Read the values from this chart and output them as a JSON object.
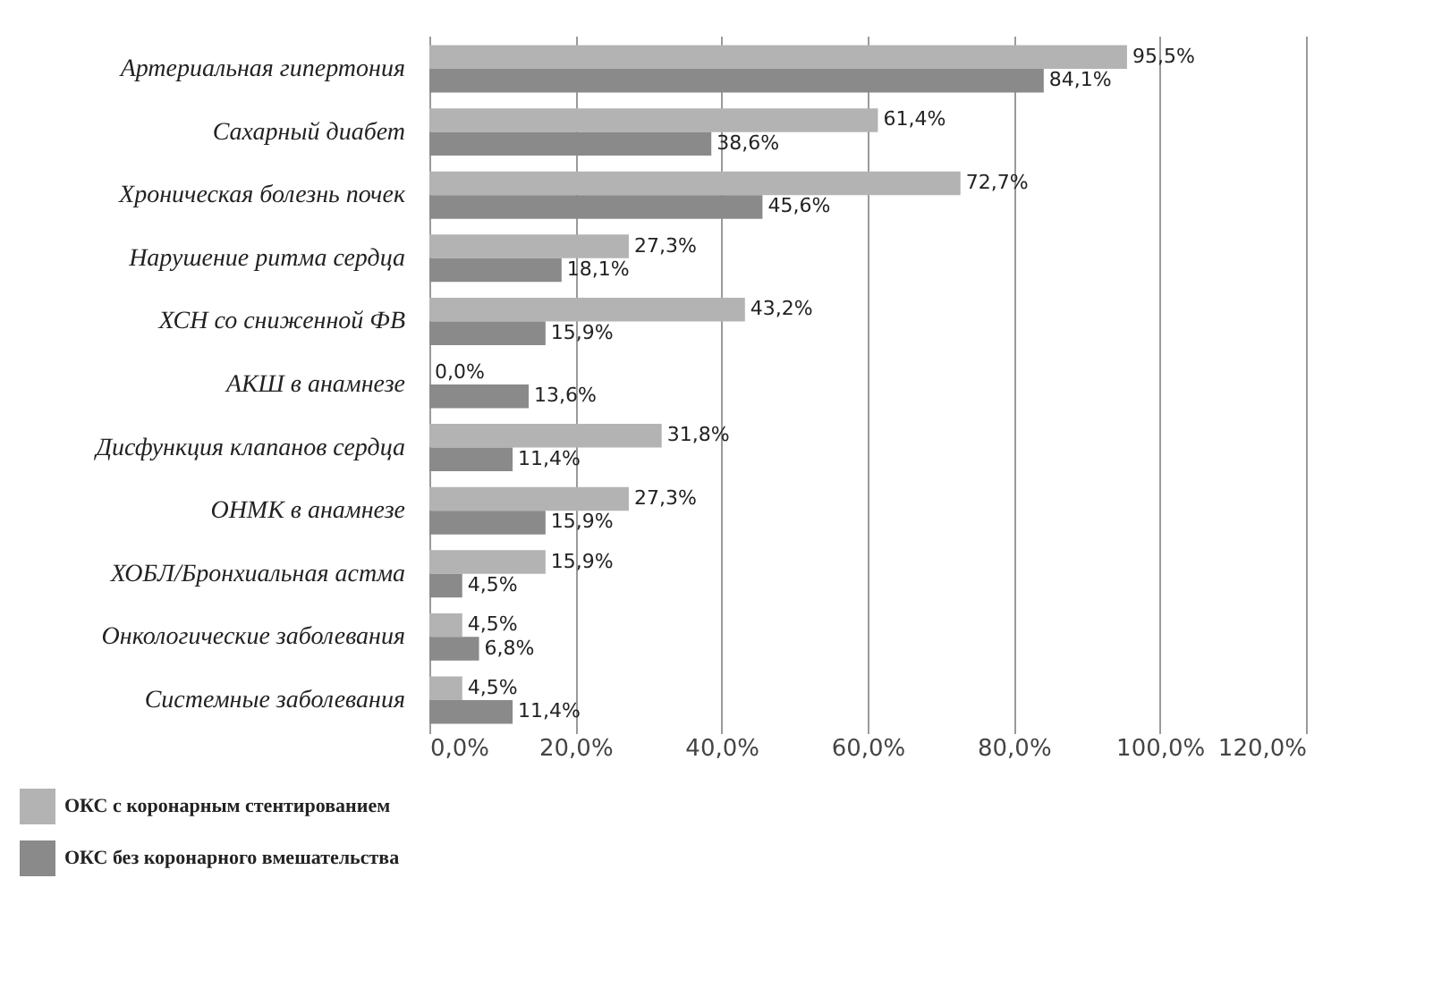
{
  "chart_data": {
    "type": "bar",
    "orientation": "horizontal",
    "categories": [
      "Артериальная гипертония",
      "Сахарный диабет",
      "Хроническая болезнь почек",
      "Нарушение ритма сердца",
      "ХСН со сниженной ФВ",
      "АКШ в анамнезе",
      "Дисфункция клапанов сердца",
      "ОНМК в анамнезе",
      "ХОБЛ/Бронхиальная астма",
      "Онкологические заболевания",
      "Системные заболевания"
    ],
    "series": [
      {
        "name": "ОКС с коронарным стентированием",
        "color": "#b3b3b3",
        "values": [
          95.5,
          61.4,
          72.7,
          27.3,
          43.2,
          0.0,
          31.8,
          27.3,
          15.9,
          4.5,
          4.5
        ],
        "value_labels": [
          "95,5%",
          "61,4%",
          "72,7%",
          "27,3%",
          "43,2%",
          "0,0%",
          "31,8%",
          "27,3%",
          "15,9%",
          "4,5%",
          "4,5%"
        ]
      },
      {
        "name": "ОКС без коронарного вмешательства",
        "color": "#8a8a8a",
        "values": [
          84.1,
          38.6,
          45.6,
          18.1,
          15.9,
          13.6,
          11.4,
          15.9,
          4.5,
          6.8,
          11.4
        ],
        "value_labels": [
          "84,1%",
          "38,6%",
          "45,6%",
          "18,1%",
          "15,9%",
          "13,6%",
          "11,4%",
          "15,9%",
          "4,5%",
          "6,8%",
          "11,4%"
        ]
      }
    ],
    "xlim": [
      0,
      120
    ],
    "xticks": [
      {
        "value": 0,
        "label": "0,0%"
      },
      {
        "value": 20,
        "label": "20,0%"
      },
      {
        "value": 40,
        "label": "40,0%"
      },
      {
        "value": 60,
        "label": "60,0%"
      },
      {
        "value": 80,
        "label": "80,0%"
      },
      {
        "value": 100,
        "label": "100,0%"
      },
      {
        "value": 120,
        "label": "120,0%"
      }
    ],
    "grid": "x",
    "legend": "bottom left"
  }
}
